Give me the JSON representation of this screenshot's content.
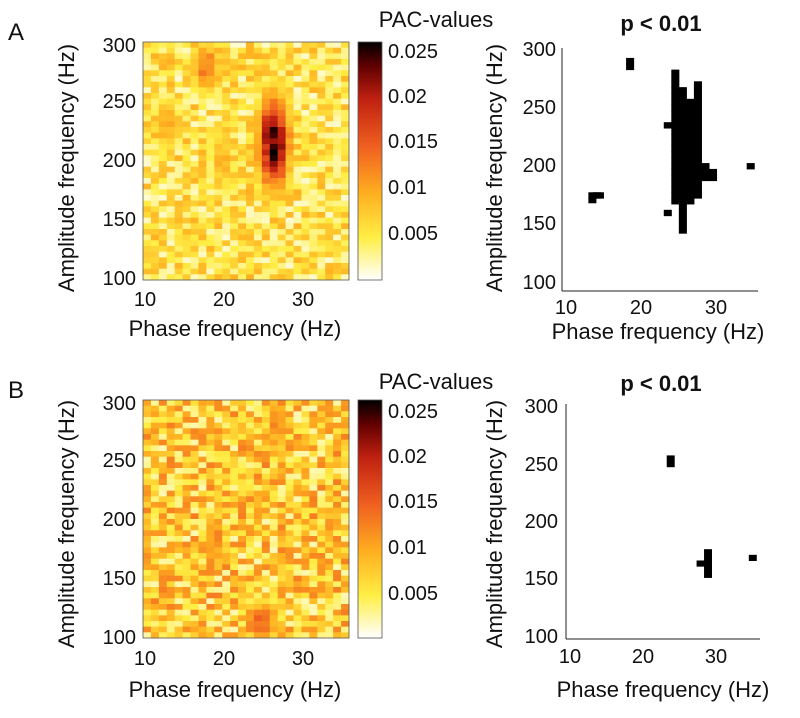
{
  "panels": [
    {
      "letter": "A",
      "heatmap": {
        "type": "heatmap",
        "xlabel": "Phase frequency (Hz)",
        "ylabel": "Amplitude frequency (Hz)",
        "xlim": [
          10,
          36
        ],
        "ylim": [
          96,
          302
        ],
        "xticks": [
          "10",
          "20",
          "30"
        ],
        "yticks": [
          "100",
          "150",
          "200",
          "250",
          "300"
        ],
        "colorbar_title": "PAC-values",
        "colorbar_ticks": [
          "0.025",
          "0.02",
          "0.015",
          "0.01",
          "0.005"
        ],
        "clim": [
          0.001,
          0.026
        ],
        "colormap": [
          "#ffffff",
          "#ffee44",
          "#ffb020",
          "#f06020",
          "#c02010",
          "#600000",
          "#000000"
        ],
        "grid_note": "26 phase bins x 42 amplitude bins",
        "hotspots": [
          {
            "x": 26.5,
            "y": 215,
            "sx": 1.6,
            "sy": 32,
            "value": 0.025
          },
          {
            "x": 18,
            "y": 280,
            "sx": 1.5,
            "sy": 18,
            "value": 0.014
          },
          {
            "x": 13,
            "y": 230,
            "sx": 1.5,
            "sy": 20,
            "value": 0.011
          },
          {
            "x": 20,
            "y": 200,
            "sx": 1.3,
            "sy": 25,
            "value": 0.01
          }
        ],
        "background": 0.006
      },
      "significance": {
        "type": "scatter",
        "title": "p < 0.01",
        "xlabel": "Phase frequency (Hz)",
        "ylabel": "Amplitude frequency (Hz)",
        "xlim": [
          10,
          36
        ],
        "ylim": [
          98,
          306
        ],
        "xticks": [
          "10",
          "20",
          "30"
        ],
        "yticks": [
          "100",
          "150",
          "200",
          "250",
          "300"
        ],
        "points": [
          [
            14,
            180
          ],
          [
            14.6,
            180
          ],
          [
            15,
            180
          ],
          [
            14,
            176
          ],
          [
            19,
            295
          ],
          [
            19,
            290
          ],
          [
            24,
            240
          ],
          [
            24,
            165
          ],
          [
            25,
            285
          ],
          [
            25,
            280
          ],
          [
            25,
            275
          ],
          [
            25,
            270
          ],
          [
            25,
            265
          ],
          [
            25,
            260
          ],
          [
            25,
            255
          ],
          [
            25,
            250
          ],
          [
            25,
            245
          ],
          [
            25,
            240
          ],
          [
            25,
            235
          ],
          [
            25,
            230
          ],
          [
            25,
            225
          ],
          [
            25,
            220
          ],
          [
            25,
            215
          ],
          [
            25,
            210
          ],
          [
            25,
            205
          ],
          [
            25,
            200
          ],
          [
            25,
            195
          ],
          [
            25,
            190
          ],
          [
            25,
            185
          ],
          [
            25,
            180
          ],
          [
            25,
            175
          ],
          [
            26,
            270
          ],
          [
            26,
            265
          ],
          [
            26,
            260
          ],
          [
            26,
            255
          ],
          [
            26,
            250
          ],
          [
            26,
            245
          ],
          [
            26,
            240
          ],
          [
            26,
            235
          ],
          [
            26,
            230
          ],
          [
            26,
            225
          ],
          [
            26,
            220
          ],
          [
            26,
            215
          ],
          [
            26,
            210
          ],
          [
            26,
            205
          ],
          [
            26,
            200
          ],
          [
            26,
            195
          ],
          [
            26,
            190
          ],
          [
            26,
            185
          ],
          [
            26,
            180
          ],
          [
            26,
            175
          ],
          [
            26,
            170
          ],
          [
            26,
            165
          ],
          [
            26,
            160
          ],
          [
            26,
            155
          ],
          [
            26,
            150
          ],
          [
            27,
            260
          ],
          [
            27,
            255
          ],
          [
            27,
            250
          ],
          [
            27,
            245
          ],
          [
            27,
            240
          ],
          [
            27,
            235
          ],
          [
            27,
            230
          ],
          [
            27,
            225
          ],
          [
            27,
            220
          ],
          [
            27,
            215
          ],
          [
            27,
            210
          ],
          [
            27,
            205
          ],
          [
            27,
            200
          ],
          [
            27,
            195
          ],
          [
            27,
            190
          ],
          [
            27,
            185
          ],
          [
            27,
            180
          ],
          [
            27,
            175
          ],
          [
            28,
            275
          ],
          [
            28,
            270
          ],
          [
            28,
            265
          ],
          [
            28,
            260
          ],
          [
            28,
            255
          ],
          [
            28,
            250
          ],
          [
            28,
            245
          ],
          [
            28,
            240
          ],
          [
            28,
            235
          ],
          [
            28,
            230
          ],
          [
            28,
            225
          ],
          [
            28,
            220
          ],
          [
            28,
            215
          ],
          [
            28,
            210
          ],
          [
            28,
            205
          ],
          [
            28,
            200
          ],
          [
            28,
            195
          ],
          [
            28,
            190
          ],
          [
            28,
            185
          ],
          [
            28,
            180
          ],
          [
            29,
            205
          ],
          [
            29,
            200
          ],
          [
            29,
            195
          ],
          [
            30,
            200
          ],
          [
            30,
            195
          ],
          [
            35,
            205
          ]
        ]
      }
    },
    {
      "letter": "B",
      "heatmap": {
        "type": "heatmap",
        "xlabel": "Phase frequency (Hz)",
        "ylabel": "Amplitude frequency (Hz)",
        "xlim": [
          10,
          36
        ],
        "ylim": [
          96,
          302
        ],
        "xticks": [
          "10",
          "20",
          "30"
        ],
        "yticks": [
          "100",
          "150",
          "200",
          "250",
          "300"
        ],
        "colorbar_title": "PAC-values",
        "colorbar_ticks": [
          "0.025",
          "0.02",
          "0.015",
          "0.01",
          "0.005"
        ],
        "clim": [
          0.001,
          0.026
        ],
        "colormap": [
          "#ffffff",
          "#ffee44",
          "#ffb020",
          "#f06020",
          "#c02010",
          "#600000",
          "#000000"
        ],
        "grid_note": "26 phase bins x 42 amplitude bins",
        "hotspots": [
          {
            "x": 25,
            "y": 110,
            "sx": 1.8,
            "sy": 15,
            "value": 0.015
          },
          {
            "x": 19,
            "y": 180,
            "sx": 1.2,
            "sy": 20,
            "value": 0.013
          },
          {
            "x": 27,
            "y": 280,
            "sx": 1.3,
            "sy": 20,
            "value": 0.013
          }
        ],
        "background": 0.008
      },
      "significance": {
        "type": "scatter",
        "title": "p < 0.01",
        "xlabel": "Phase frequency (Hz)",
        "ylabel": "Amplitude frequency (Hz)",
        "xlim": [
          10,
          36
        ],
        "ylim": [
          98,
          306
        ],
        "xticks": [
          "10",
          "20",
          "30"
        ],
        "yticks": [
          "100",
          "150",
          "200",
          "250",
          "300"
        ],
        "points": [
          [
            24,
            258
          ],
          [
            24,
            253
          ],
          [
            28,
            165
          ],
          [
            29,
            175
          ],
          [
            29,
            170
          ],
          [
            29,
            165
          ],
          [
            29,
            160
          ],
          [
            29,
            155
          ],
          [
            35,
            170
          ]
        ]
      }
    }
  ]
}
